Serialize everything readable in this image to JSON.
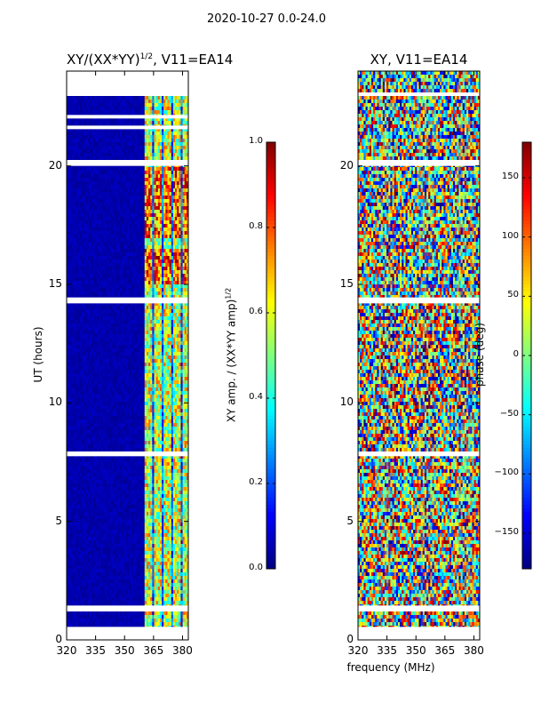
{
  "figure_title": "2020-10-27 0.0-24.0",
  "chart_data": [
    {
      "type": "heatmap",
      "title_main": "XY/(XX*YY)",
      "title_sup": "1/2",
      "title_tail": ", V11=EA14",
      "xlabel": "",
      "ylabel": "UT (hours)",
      "xlim": [
        320,
        383
      ],
      "ylim": [
        0,
        24
      ],
      "xticks": [
        320,
        335,
        350,
        365,
        380
      ],
      "yticks": [
        0,
        5,
        10,
        15,
        20
      ],
      "colorbar": {
        "label_main": "XY amp. / (XX*YY amp)",
        "label_sup": "1/2",
        "range": [
          0.0,
          1.0
        ],
        "ticks": [
          "0.0",
          "0.2",
          "0.4",
          "0.6",
          "0.8",
          "1.0"
        ]
      },
      "bright_channels_start_mhz": 360,
      "gaps_ut_hours": [
        [
          22.95,
          24.0
        ],
        [
          22.0,
          22.15
        ],
        [
          21.55,
          21.7
        ],
        [
          20.0,
          20.25
        ],
        [
          14.2,
          14.45
        ],
        [
          7.75,
          7.95
        ],
        [
          1.2,
          1.45
        ],
        [
          0.0,
          0.55
        ]
      ]
    },
    {
      "type": "heatmap",
      "title": "XY, V11=EA14",
      "xlabel": "frequency (MHz)",
      "ylabel": "",
      "xlim": [
        320,
        383
      ],
      "ylim": [
        0,
        24
      ],
      "xticks": [
        320,
        335,
        350,
        365,
        380
      ],
      "yticks": [
        0,
        5,
        10,
        15,
        20
      ],
      "colorbar": {
        "label": "phase (deg)",
        "range": [
          -180,
          180
        ],
        "ticks": [
          "−150",
          "−100",
          "−50",
          "0",
          "50",
          "100",
          "150"
        ]
      },
      "gaps_ut_hours": [
        [
          22.95,
          23.1
        ],
        [
          20.0,
          20.25
        ],
        [
          14.2,
          14.45
        ],
        [
          7.75,
          7.95
        ],
        [
          1.2,
          1.45
        ],
        [
          0.0,
          0.55
        ]
      ]
    }
  ]
}
